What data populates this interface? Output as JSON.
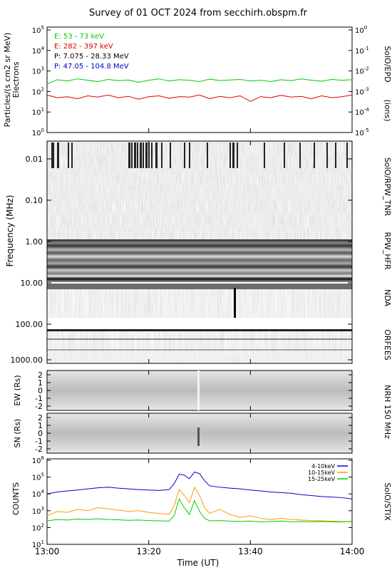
{
  "title": "Survey of 01 OCT 2024 from secchirh.obspm.fr",
  "xaxis": {
    "label": "Time (UT)",
    "ticks": [
      "13:00",
      "13:20",
      "13:40",
      "14:00"
    ],
    "start_min": 0,
    "end_min": 60
  },
  "colors": {
    "green": "#00cc00",
    "red": "#dd0000",
    "black": "#000000",
    "blue": "#0000cc",
    "orange": "#ff9900"
  },
  "panels": {
    "epd": {
      "ylabel_left": "Particles/(s cm2 sr MeV)",
      "ylabel_left2": "Electrons",
      "ylabel_right": "(ions)",
      "instrument": "SolO/EPD",
      "left_ticks": [
        {
          "base": "10",
          "exp": "5"
        },
        {
          "base": "10",
          "exp": "4"
        },
        {
          "base": "10",
          "exp": "3"
        },
        {
          "base": "10",
          "exp": "2"
        },
        {
          "base": "10",
          "exp": "1"
        },
        {
          "base": "10",
          "exp": "0"
        }
      ],
      "right_ticks": [
        {
          "base": "10",
          "exp": "0"
        },
        {
          "base": "10",
          "exp": "-1"
        },
        {
          "base": "10",
          "exp": "-2"
        },
        {
          "base": "10",
          "exp": "-3"
        },
        {
          "base": "10",
          "exp": "-4"
        },
        {
          "base": "10",
          "exp": "-5"
        }
      ],
      "legend": [
        {
          "text": "E: 53 - 73 keV",
          "color": "#00cc00"
        },
        {
          "text": "E: 282 - 397 keV",
          "color": "#dd0000"
        },
        {
          "text": "P: 7.075 - 28.33 MeV",
          "color": "#000000"
        },
        {
          "text": "P: 47.05 - 104.8 MeV",
          "color": "#0000cc"
        }
      ]
    },
    "radio": {
      "ylabel": "Frequency (MHz)",
      "ticks": [
        "0.01",
        "0.10",
        "1.00",
        "10.00",
        "100.00",
        "1000.00"
      ],
      "instruments": [
        "SolO/RPW_TNR",
        "RPW_HFR",
        "NDA",
        "ORFEES"
      ]
    },
    "nrh_ew": {
      "ylabel": "EW (Rs)",
      "ticks": [
        "2",
        "1",
        "0",
        "-1",
        "-2"
      ]
    },
    "nrh_sn": {
      "ylabel": "SN (Rs)",
      "ticks": [
        "2",
        "1",
        "0",
        "-1",
        "-2"
      ]
    },
    "nrh_label": "NRH 150 MHz",
    "stix": {
      "ylabel": "COUNTS",
      "instrument": "SolO/STIX",
      "ticks": [
        {
          "base": "10",
          "exp": "6"
        },
        {
          "base": "10",
          "exp": "5"
        },
        {
          "base": "10",
          "exp": "4"
        },
        {
          "base": "10",
          "exp": "3"
        },
        {
          "base": "10",
          "exp": "2"
        },
        {
          "base": "10",
          "exp": "1"
        }
      ],
      "legend": [
        {
          "text": "4-10keV",
          "color": "#0000cc"
        },
        {
          "text": "10-15keV",
          "color": "#ff9900"
        },
        {
          "text": "15-25keV",
          "color": "#00cc00"
        }
      ]
    }
  },
  "chart_data": [
    {
      "type": "line",
      "panel": "SolO/EPD",
      "y_scale": "log",
      "ylim": [
        1,
        100000
      ],
      "xlim_min": [
        0,
        60
      ],
      "series": [
        {
          "name": "E: 53 - 73 keV",
          "color": "#00cc00",
          "x": [
            0,
            2,
            4,
            6,
            8,
            10,
            12,
            14,
            16,
            18,
            20,
            22,
            24,
            26,
            28,
            30,
            32,
            34,
            36,
            38,
            40,
            42,
            44,
            46,
            48,
            50,
            52,
            54,
            56,
            58,
            60
          ],
          "y": [
            200,
            320,
            280,
            350,
            300,
            260,
            330,
            290,
            310,
            240,
            300,
            350,
            280,
            320,
            300,
            260,
            340,
            290,
            310,
            330,
            280,
            300,
            260,
            320,
            290,
            350,
            300,
            270,
            330,
            300,
            320
          ]
        },
        {
          "name": "E: 282 - 397 keV",
          "color": "#dd0000",
          "x": [
            0,
            2,
            4,
            6,
            8,
            10,
            12,
            14,
            16,
            18,
            20,
            22,
            24,
            26,
            28,
            30,
            32,
            34,
            36,
            38,
            40,
            42,
            44,
            46,
            48,
            50,
            52,
            54,
            56,
            58,
            60
          ],
          "y": [
            60,
            45,
            50,
            40,
            55,
            48,
            60,
            45,
            52,
            38,
            50,
            55,
            42,
            50,
            48,
            60,
            40,
            52,
            45,
            55,
            30,
            50,
            45,
            58,
            48,
            52,
            40,
            55,
            45,
            50,
            60
          ]
        }
      ]
    },
    {
      "type": "line",
      "panel": "SolO/STIX",
      "y_scale": "log",
      "ylim": [
        10,
        1000000
      ],
      "xlim_min": [
        0,
        60
      ],
      "series": [
        {
          "name": "4-10keV",
          "color": "#0000cc",
          "x": [
            0,
            2,
            4,
            6,
            8,
            10,
            12,
            14,
            16,
            18,
            20,
            22,
            24,
            25,
            26,
            27,
            28,
            29,
            30,
            31,
            32,
            34,
            36,
            38,
            40,
            42,
            44,
            46,
            48,
            50,
            52,
            54,
            56,
            58,
            60
          ],
          "y": [
            10000,
            13000,
            15000,
            17000,
            20000,
            23000,
            25000,
            22000,
            20000,
            18000,
            17000,
            16000,
            18000,
            40000,
            150000,
            130000,
            80000,
            200000,
            160000,
            60000,
            30000,
            25000,
            22000,
            20000,
            17000,
            15000,
            13000,
            12000,
            11000,
            9000,
            8000,
            7000,
            6500,
            6000,
            5000
          ]
        },
        {
          "name": "10-15keV",
          "color": "#ff9900",
          "x": [
            0,
            2,
            4,
            6,
            8,
            10,
            12,
            14,
            16,
            18,
            20,
            22,
            24,
            25,
            26,
            27,
            28,
            29,
            30,
            31,
            32,
            34,
            36,
            38,
            40,
            42,
            44,
            46,
            48,
            50,
            52,
            54,
            56,
            58,
            60
          ],
          "y": [
            500,
            900,
            800,
            1200,
            1000,
            1500,
            1300,
            1100,
            900,
            1000,
            800,
            700,
            600,
            2000,
            18000,
            8000,
            3000,
            25000,
            8000,
            1500,
            700,
            1200,
            600,
            400,
            500,
            350,
            300,
            350,
            300,
            280,
            260,
            250,
            240,
            230,
            220
          ]
        },
        {
          "name": "15-25keV",
          "color": "#00cc00",
          "x": [
            0,
            2,
            4,
            6,
            8,
            10,
            12,
            14,
            16,
            18,
            20,
            22,
            24,
            25,
            26,
            27,
            28,
            29,
            30,
            31,
            32,
            34,
            36,
            38,
            40,
            42,
            44,
            46,
            48,
            50,
            52,
            54,
            56,
            58,
            60
          ],
          "y": [
            250,
            300,
            280,
            320,
            300,
            330,
            300,
            290,
            270,
            280,
            260,
            250,
            240,
            500,
            5000,
            1500,
            600,
            4000,
            900,
            350,
            250,
            260,
            240,
            230,
            240,
            220,
            230,
            240,
            220,
            230,
            220,
            230,
            220,
            220,
            230
          ]
        }
      ]
    }
  ]
}
